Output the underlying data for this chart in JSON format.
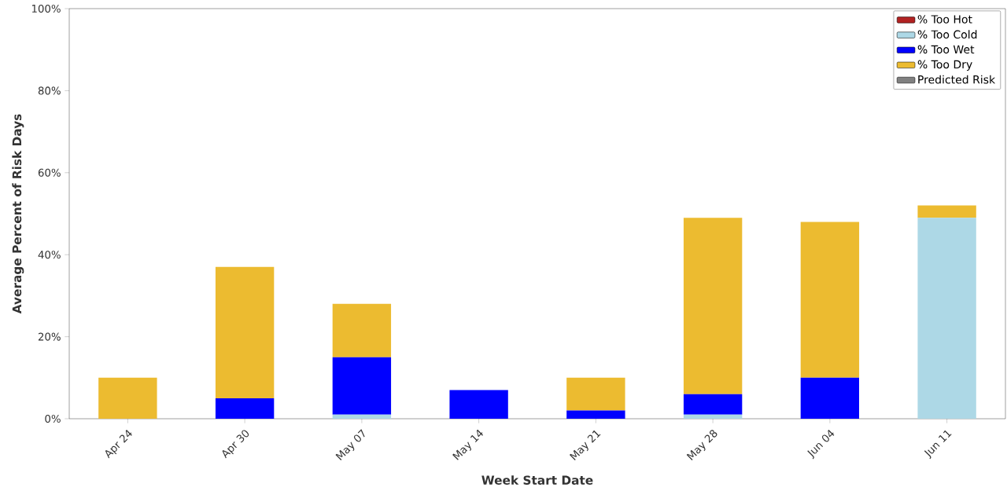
{
  "chart_data": {
    "type": "bar",
    "stacked": true,
    "xlabel": "Week Start Date",
    "ylabel": "Average Percent of Risk Days",
    "categories": [
      "Apr 24",
      "Apr 30",
      "May 07",
      "May 14",
      "May 21",
      "May 28",
      "Jun 04",
      "Jun 11"
    ],
    "series": [
      {
        "name": "% Too Hot",
        "color": "#b22222",
        "values": [
          0,
          0,
          0,
          0,
          0,
          0,
          0,
          0
        ]
      },
      {
        "name": "% Too Cold",
        "color": "#add8e6",
        "values": [
          0,
          0,
          1,
          0,
          0,
          1,
          0,
          49
        ]
      },
      {
        "name": "% Too Wet",
        "color": "#0000ff",
        "values": [
          0,
          5,
          14,
          7,
          2,
          5,
          10,
          0
        ]
      },
      {
        "name": "% Too Dry",
        "color": "#ecbb30",
        "values": [
          10,
          32,
          13,
          0,
          8,
          43,
          38,
          3
        ]
      },
      {
        "name": "Predicted Risk",
        "color": "#808080",
        "values": [
          null,
          null,
          null,
          null,
          null,
          null,
          null,
          null
        ]
      }
    ],
    "ylim": [
      0,
      100
    ],
    "yticks": [
      {
        "value": 0,
        "label": "0%"
      },
      {
        "value": 20,
        "label": "20%"
      },
      {
        "value": 40,
        "label": "40%"
      },
      {
        "value": 60,
        "label": "60%"
      },
      {
        "value": 80,
        "label": "80%"
      },
      {
        "value": 100,
        "label": "100%"
      }
    ],
    "legend": "top right",
    "grid": false
  }
}
